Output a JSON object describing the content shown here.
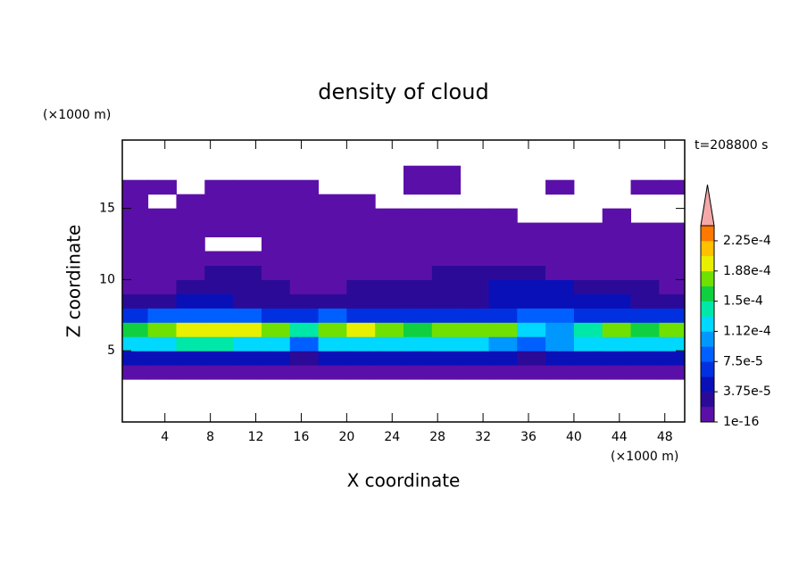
{
  "chart_data": {
    "type": "contour",
    "title": "density of cloud",
    "xlabel": "X coordinate",
    "ylabel": "Z coordinate",
    "x_unit": "(×1000 m)",
    "y_unit": "(×1000 m)",
    "annotation": "t=208800 s",
    "xlim": [
      0.25,
      49.75
    ],
    "ylim": [
      0,
      19.8
    ],
    "xticks": [
      4,
      8,
      12,
      16,
      20,
      24,
      28,
      32,
      36,
      40,
      44,
      48
    ],
    "yticks": [
      5,
      10,
      15
    ],
    "x": [
      1.25,
      3.75,
      6.25,
      8.75,
      11.25,
      13.75,
      16.25,
      18.75,
      21.25,
      23.75,
      26.25,
      28.75,
      31.25,
      33.75,
      36.25,
      38.75,
      41.25,
      43.75,
      46.25,
      48.75
    ],
    "y": [
      3.5,
      4.5,
      5.5,
      6.5,
      7.5,
      8.5,
      9.5,
      10.5,
      11.5,
      12.5,
      13.5,
      14.5,
      15.5,
      16.5,
      17.5
    ],
    "values": [
      [
        5e-06,
        5e-06,
        5e-06,
        5e-06,
        5e-06,
        5e-06,
        5e-06,
        5e-06,
        5e-06,
        5e-06,
        5e-06,
        5e-06,
        5e-06,
        5e-06,
        5e-06,
        5e-06,
        5e-06,
        5e-06,
        5e-06,
        5e-06
      ],
      [
        4e-05,
        4.5e-05,
        5e-05,
        5e-05,
        4.5e-05,
        4e-05,
        2e-05,
        5e-05,
        5e-05,
        5e-05,
        5e-05,
        5e-05,
        4.5e-05,
        4e-05,
        2e-05,
        5e-05,
        5e-05,
        5e-05,
        5e-05,
        4.5e-05
      ],
      [
        0.00012,
        0.00013,
        0.000135,
        0.000135,
        0.00013,
        0.00012,
        9e-05,
        0.00013,
        0.00013,
        0.00013,
        0.000125,
        0.00013,
        0.00012,
        0.00011,
        9e-05,
        0.00011,
        0.00012,
        0.000125,
        0.00012,
        0.00012
      ],
      [
        0.00016,
        0.00018,
        0.000195,
        0.000205,
        0.00019,
        0.00017,
        0.00014,
        0.000185,
        0.00019,
        0.00018,
        0.000165,
        0.00018,
        0.000175,
        0.00017,
        0.00013,
        0.00011,
        0.000145,
        0.00017,
        0.00016,
        0.00017
      ],
      [
        7e-05,
        8e-05,
        9e-05,
        9e-05,
        8e-05,
        7e-05,
        6e-05,
        8e-05,
        7e-05,
        7e-05,
        6e-05,
        6e-05,
        6e-05,
        7e-05,
        8e-05,
        8e-05,
        7e-05,
        7e-05,
        7e-05,
        7e-05
      ],
      [
        3e-05,
        3.5e-05,
        4e-05,
        4e-05,
        3.5e-05,
        3e-05,
        3e-05,
        3.5e-05,
        3e-05,
        3e-05,
        3e-05,
        3e-05,
        3.5e-05,
        4e-05,
        5e-05,
        5.5e-05,
        4.5e-05,
        4e-05,
        3.5e-05,
        3e-05
      ],
      [
        1.5e-05,
        1.5e-05,
        2e-05,
        2.5e-05,
        2.5e-05,
        2e-05,
        1.5e-05,
        1.5e-05,
        2e-05,
        2e-05,
        2e-05,
        2.5e-05,
        3e-05,
        4e-05,
        4e-05,
        4e-05,
        3e-05,
        2.5e-05,
        2e-05,
        1.5e-05
      ],
      [
        8e-06,
        8e-06,
        1.2e-05,
        2.5e-05,
        2.5e-05,
        1.2e-05,
        8e-06,
        8e-06,
        1e-05,
        1.2e-05,
        1.5e-05,
        2e-05,
        2.5e-05,
        3e-05,
        3e-05,
        1.5e-05,
        1.5e-05,
        1.2e-05,
        1e-05,
        8e-06
      ],
      [
        5e-06,
        5e-06,
        5e-06,
        1e-05,
        8e-06,
        5e-06,
        5e-06,
        5e-06,
        5e-06,
        8e-06,
        1.2e-05,
        1.5e-05,
        1.5e-05,
        1.5e-05,
        1e-05,
        5e-06,
        5e-06,
        5e-06,
        5e-06,
        5e-06
      ],
      [
        3e-06,
        3e-06,
        3e-06,
        null,
        null,
        3e-06,
        3e-06,
        3e-06,
        3e-06,
        3e-06,
        3e-06,
        3e-06,
        3e-06,
        3e-06,
        3e-06,
        3e-06,
        3e-06,
        3e-06,
        3e-06,
        3e-06
      ],
      [
        2e-06,
        2e-06,
        2e-06,
        2e-06,
        2e-06,
        2e-06,
        2e-06,
        2e-06,
        2e-06,
        2e-06,
        2e-06,
        2e-06,
        2e-06,
        2e-06,
        2e-06,
        2e-06,
        2e-06,
        2e-06,
        2e-06,
        2e-06
      ],
      [
        2e-06,
        2e-06,
        2e-06,
        2e-06,
        2e-06,
        2e-06,
        2e-06,
        2e-06,
        2e-06,
        2e-06,
        2e-06,
        2e-06,
        2e-06,
        2e-06,
        null,
        null,
        null,
        2e-06,
        null,
        null
      ],
      [
        1e-06,
        null,
        1e-06,
        1e-06,
        1e-06,
        1e-06,
        1e-06,
        1e-06,
        1e-06,
        null,
        null,
        null,
        null,
        null,
        null,
        null,
        null,
        null,
        null,
        null
      ],
      [
        1e-06,
        1e-06,
        null,
        1e-06,
        1e-06,
        1e-06,
        1e-06,
        null,
        null,
        null,
        1e-06,
        1e-06,
        null,
        null,
        null,
        1e-06,
        null,
        null,
        1e-06,
        1e-06
      ],
      [
        null,
        null,
        null,
        null,
        null,
        null,
        null,
        null,
        null,
        null,
        1e-06,
        1e-06,
        null,
        null,
        null,
        null,
        null,
        null,
        null,
        null
      ]
    ],
    "clim": [
      1e-16,
      0.00024375
    ],
    "cticks": [
      {
        "value": 1e-16,
        "label": "1e-16"
      },
      {
        "value": 3.75e-05,
        "label": "3.75e-5"
      },
      {
        "value": 7.5e-05,
        "label": "7.5e-5"
      },
      {
        "value": 0.0001125,
        "label": "1.12e-4"
      },
      {
        "value": 0.00015,
        "label": "1.5e-4"
      },
      {
        "value": 0.0001875,
        "label": "1.88e-4"
      },
      {
        "value": 0.000225,
        "label": "2.25e-4"
      }
    ],
    "colors": [
      "#5a10a8",
      "#2c0a98",
      "#0a10b8",
      "#0030e0",
      "#0060ff",
      "#0098ff",
      "#00d8ff",
      "#00e8a8",
      "#10d040",
      "#70e000",
      "#e8f000",
      "#ffc000",
      "#ff7800"
    ],
    "extend_color": "#f4a8a8"
  }
}
